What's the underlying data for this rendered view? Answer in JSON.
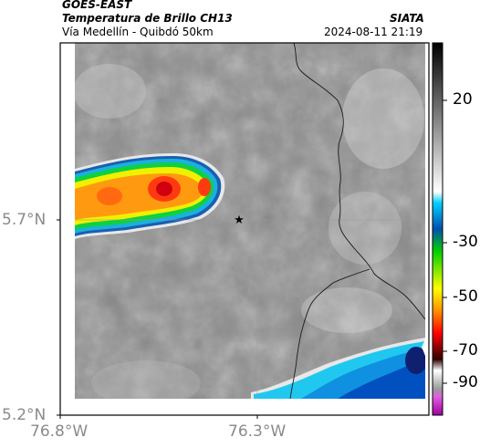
{
  "header": {
    "satellite": "GOES-EAST",
    "product": "Temperatura de Brillo CH13",
    "route": "Vía Medellín - Quibdó 50km",
    "agency": "SIATA",
    "datetime": "2024-08-11 21:19"
  },
  "axes": {
    "y_ticks": [
      "5.7°N",
      "5.2°N"
    ],
    "x_ticks": [
      "76.8°W",
      "76.3°W"
    ]
  },
  "colorbar": {
    "ticks": [
      "20",
      "-30",
      "-50",
      "-70",
      "-90"
    ],
    "stops": [
      "#000000",
      "#ffffff",
      "#00c8ff",
      "#0040a0",
      "#00ff00",
      "#ffff00",
      "#ff8000",
      "#ff0000",
      "#300000",
      "#e000e0"
    ]
  },
  "map": {
    "marker": "star-icon",
    "features": [
      "cold-cloud-west",
      "cold-cloud-southeast",
      "boundary-lines"
    ]
  }
}
